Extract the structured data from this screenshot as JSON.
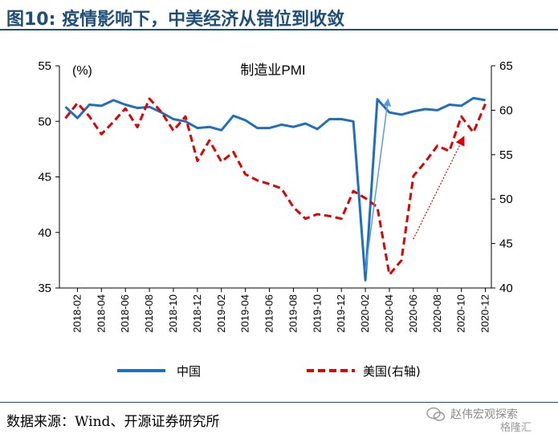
{
  "header": {
    "figure_title": "图10:  疫情影响下，中美经济从错位到收敛"
  },
  "footer": {
    "source": "数据来源：Wind、开源证券研究所",
    "watermark_label": "赵伟宏观探索",
    "watermark_logo": "格隆汇"
  },
  "colors": {
    "china": "#1f6fbf",
    "usa": "#e00000",
    "title": "#1f4e79"
  },
  "chart_data": {
    "type": "line",
    "title": "制造业PMI",
    "left_unit": "(%)",
    "ylim_left": [
      35,
      55
    ],
    "ylim_right": [
      40,
      65
    ],
    "yticks_left": [
      "55",
      "50",
      "45",
      "40",
      "35"
    ],
    "yticks_right": [
      "65",
      "60",
      "55",
      "50",
      "45",
      "40"
    ],
    "x_tick_labels": [
      "2018-02",
      "2018-04",
      "2018-06",
      "2018-08",
      "2018-10",
      "2018-12",
      "2019-02",
      "2019-04",
      "2019-06",
      "2019-08",
      "2019-10",
      "2019-12",
      "2020-02",
      "2020-04",
      "2020-06",
      "2020-08",
      "2020-10",
      "2020-12"
    ],
    "x": [
      "2018-01",
      "2018-02",
      "2018-03",
      "2018-04",
      "2018-05",
      "2018-06",
      "2018-07",
      "2018-08",
      "2018-09",
      "2018-10",
      "2018-11",
      "2018-12",
      "2019-01",
      "2019-02",
      "2019-03",
      "2019-04",
      "2019-05",
      "2019-06",
      "2019-07",
      "2019-08",
      "2019-09",
      "2019-10",
      "2019-11",
      "2019-12",
      "2020-01",
      "2020-02",
      "2020-03",
      "2020-04",
      "2020-05",
      "2020-06",
      "2020-07",
      "2020-08",
      "2020-09",
      "2020-10",
      "2020-11",
      "2020-12"
    ],
    "series": [
      {
        "name": "中国",
        "axis": "left",
        "style": "solid",
        "values": [
          51.3,
          50.3,
          51.5,
          51.4,
          51.9,
          51.5,
          51.2,
          51.3,
          50.8,
          50.2,
          50.0,
          49.4,
          49.5,
          49.2,
          50.5,
          50.1,
          49.4,
          49.4,
          49.7,
          49.5,
          49.8,
          49.3,
          50.2,
          50.2,
          50.0,
          35.7,
          52.0,
          50.8,
          50.6,
          50.9,
          51.1,
          51.0,
          51.5,
          51.4,
          52.1,
          51.9
        ]
      },
      {
        "name": "美国(右轴)",
        "axis": "right",
        "style": "dashed",
        "values": [
          59.1,
          60.8,
          59.3,
          57.3,
          58.7,
          60.2,
          58.1,
          61.3,
          59.8,
          57.7,
          59.3,
          54.3,
          56.6,
          54.2,
          55.3,
          52.8,
          52.1,
          51.7,
          51.2,
          49.1,
          47.8,
          48.3,
          48.1,
          47.8,
          50.9,
          50.1,
          49.1,
          41.5,
          43.1,
          52.6,
          54.2,
          56.0,
          55.4,
          59.3,
          57.5,
          60.7
        ]
      }
    ],
    "legend_position": "bottom",
    "grid": false
  }
}
